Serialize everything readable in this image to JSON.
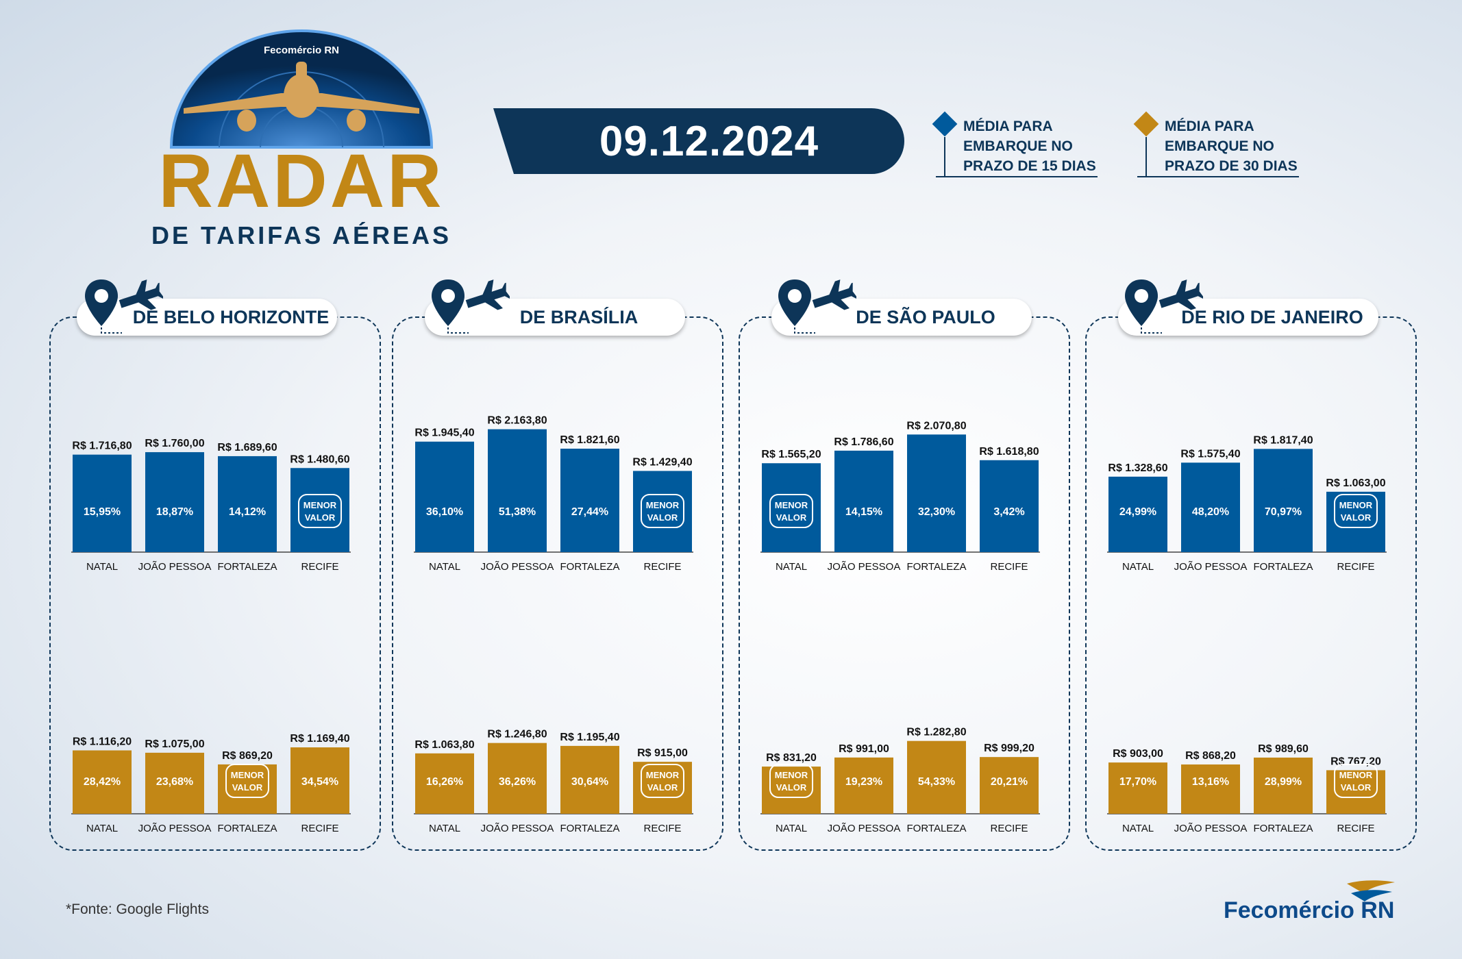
{
  "logo": {
    "brand": "Fecomércio RN",
    "title": "RADAR",
    "subtitle": "DE TARIFAS AÉREAS"
  },
  "date": "09.12.2024",
  "legend": [
    {
      "label": "MÉDIA PARA\nEMBARQUE NO\nPRAZO DE 15 DIAS",
      "color": "#005a9c"
    },
    {
      "label": "MÉDIA PARA\nEMBARQUE NO\nPRAZO DE 30 DIAS",
      "color": "#c28716"
    }
  ],
  "menor_valor": [
    "MENOR",
    "VALOR"
  ],
  "colors": {
    "blue": "#005a9c",
    "gold": "#c28716",
    "navy": "#0d3558"
  },
  "chart_data": [
    {
      "type": "bar",
      "title": "DE BELO HORIZONTE",
      "categories": [
        "NATAL",
        "JOÃO PESSOA",
        "FORTALEZA",
        "RECIFE"
      ],
      "series": [
        {
          "name": "MÉDIA PARA EMBARQUE NO PRAZO DE 15 DIAS",
          "values": [
            1716.8,
            1760.0,
            1689.6,
            1480.6
          ],
          "value_labels": [
            "R$ 1.716,80",
            "R$ 1.760,00",
            "R$ 1.689,60",
            "R$ 1.480,60"
          ],
          "percents": [
            "15,95%",
            "18,87%",
            "14,12%",
            ""
          ],
          "min_index": 3
        },
        {
          "name": "MÉDIA PARA EMBARQUE NO PRAZO DE 30 DIAS",
          "values": [
            1116.2,
            1075.0,
            869.2,
            1169.4
          ],
          "value_labels": [
            "R$ 1.116,20",
            "R$ 1.075,00",
            "R$ 869,20",
            "R$ 1.169,40"
          ],
          "percents": [
            "28,42%",
            "23,68%",
            "",
            "34,54%"
          ],
          "min_index": 2
        }
      ]
    },
    {
      "type": "bar",
      "title": "DE BRASÍLIA",
      "categories": [
        "NATAL",
        "JOÃO PESSOA",
        "FORTALEZA",
        "RECIFE"
      ],
      "series": [
        {
          "name": "MÉDIA PARA EMBARQUE NO PRAZO DE 15 DIAS",
          "values": [
            1945.4,
            2163.8,
            1821.6,
            1429.4
          ],
          "value_labels": [
            "R$ 1.945,40",
            "R$ 2.163,80",
            "R$ 1.821,60",
            "R$ 1.429,40"
          ],
          "percents": [
            "36,10%",
            "51,38%",
            "27,44%",
            ""
          ],
          "min_index": 3
        },
        {
          "name": "MÉDIA PARA EMBARQUE NO PRAZO DE 30 DIAS",
          "values": [
            1063.8,
            1246.8,
            1195.4,
            915.0
          ],
          "value_labels": [
            "R$ 1.063,80",
            "R$ 1.246,80",
            "R$ 1.195,40",
            "R$ 915,00"
          ],
          "percents": [
            "16,26%",
            "36,26%",
            "30,64%",
            ""
          ],
          "min_index": 3
        }
      ]
    },
    {
      "type": "bar",
      "title": "DE SÃO PAULO",
      "categories": [
        "NATAL",
        "JOÃO PESSOA",
        "FORTALEZA",
        "RECIFE"
      ],
      "series": [
        {
          "name": "MÉDIA PARA EMBARQUE NO PRAZO DE 15 DIAS",
          "values": [
            1565.2,
            1786.6,
            2070.8,
            1618.8
          ],
          "value_labels": [
            "R$ 1.565,20",
            "R$ 1.786,60",
            "R$ 2.070,80",
            "R$ 1.618,80"
          ],
          "percents": [
            "",
            "14,15%",
            "32,30%",
            "3,42%"
          ],
          "min_index": 0
        },
        {
          "name": "MÉDIA PARA EMBARQUE NO PRAZO DE 30 DIAS",
          "values": [
            831.2,
            991.0,
            1282.8,
            999.2
          ],
          "value_labels": [
            "R$ 831,20",
            "R$ 991,00",
            "R$ 1.282,80",
            "R$ 999,20"
          ],
          "percents": [
            "",
            "19,23%",
            "54,33%",
            "20,21%"
          ],
          "min_index": 0
        }
      ]
    },
    {
      "type": "bar",
      "title": "DE RIO DE JANEIRO",
      "categories": [
        "NATAL",
        "JOÃO PESSOA",
        "FORTALEZA",
        "RECIFE"
      ],
      "series": [
        {
          "name": "MÉDIA PARA EMBARQUE NO PRAZO DE 15 DIAS",
          "values": [
            1328.6,
            1575.4,
            1817.4,
            1063.0
          ],
          "value_labels": [
            "R$ 1.328,60",
            "R$ 1.575,40",
            "R$ 1.817,40",
            "R$ 1.063,00"
          ],
          "percents": [
            "24,99%",
            "48,20%",
            "70,97%",
            ""
          ],
          "min_index": 3
        },
        {
          "name": "MÉDIA PARA EMBARQUE NO PRAZO DE 30 DIAS",
          "values": [
            903.0,
            868.2,
            989.6,
            767.2
          ],
          "value_labels": [
            "R$ 903,00",
            "R$ 868,20",
            "R$ 989,60",
            "R$ 767,20"
          ],
          "percents": [
            "17,70%",
            "13,16%",
            "28,99%",
            ""
          ],
          "min_index": 3
        }
      ]
    }
  ],
  "footer": {
    "source": "*Fonte: Google Flights",
    "logo": "Fecomércio RN"
  }
}
